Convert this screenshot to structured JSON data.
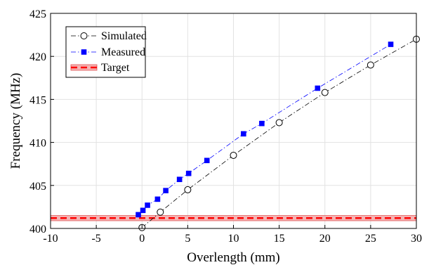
{
  "chart_data": {
    "type": "line",
    "title": "",
    "xlabel": "Overlength (mm)",
    "ylabel": "Frequency (MHz)",
    "xlim": [
      -10,
      30
    ],
    "ylim": [
      400,
      425
    ],
    "xticks": [
      -10,
      -5,
      0,
      5,
      10,
      15,
      20,
      25,
      30
    ],
    "yticks": [
      400,
      405,
      410,
      415,
      420,
      425
    ],
    "grid": true,
    "legend_position": "top-left",
    "series": [
      {
        "name": "Simulated",
        "color": "#000000",
        "marker": "open-circle",
        "line": "dash-dot",
        "x": [
          0,
          2,
          5,
          10,
          15,
          20,
          25,
          30
        ],
        "y": [
          400.1,
          401.9,
          404.5,
          408.5,
          412.3,
          415.8,
          419.0,
          422.0
        ]
      },
      {
        "name": "Measured",
        "color": "#0000ff",
        "marker": "filled-square",
        "line": "dash-dot",
        "x": [
          -0.4,
          0.1,
          0.6,
          1.7,
          2.6,
          4.1,
          5.1,
          7.1,
          11.1,
          13.1,
          19.2,
          27.2
        ],
        "y": [
          401.6,
          402.1,
          402.7,
          403.4,
          404.4,
          405.7,
          406.4,
          407.9,
          411.0,
          412.2,
          416.3,
          421.4
        ]
      },
      {
        "name": "Target",
        "color": "#ff0000",
        "marker": "none",
        "line": "dashed-band",
        "y_value": 401.2,
        "band": [
          400.9,
          401.5
        ]
      }
    ]
  }
}
